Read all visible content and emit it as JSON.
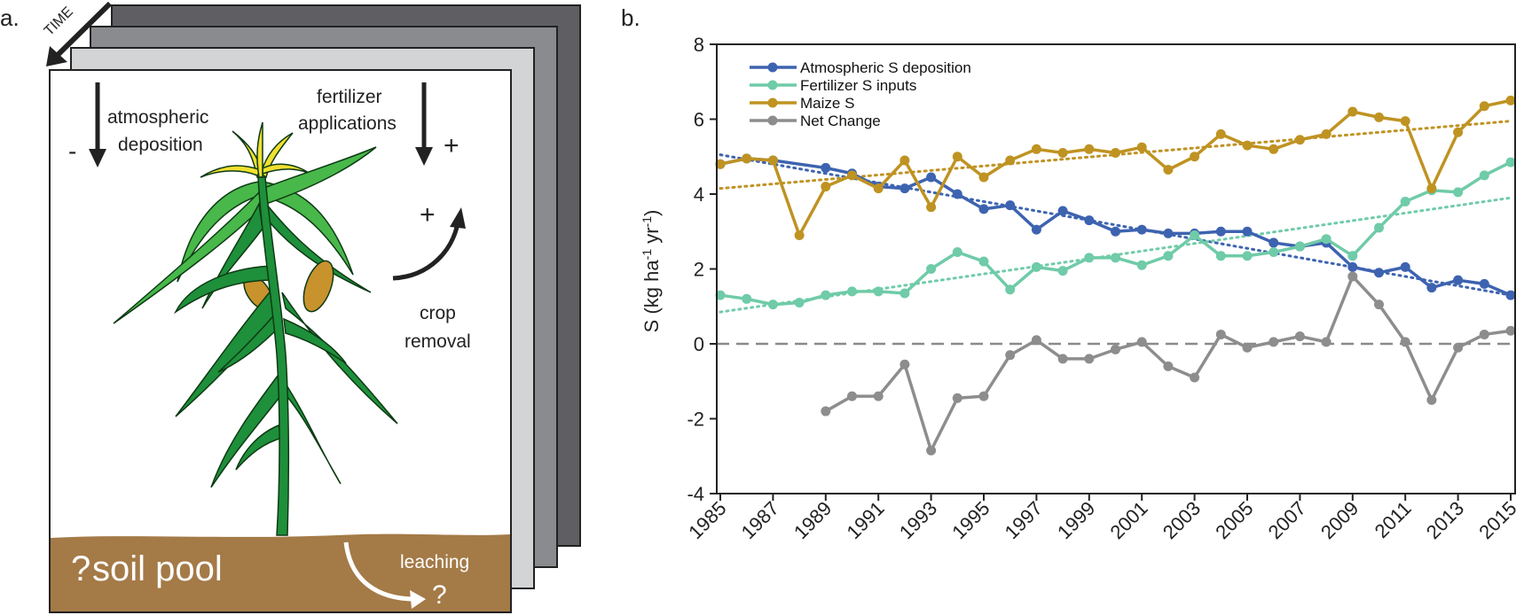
{
  "panel_a": {
    "panel_label": "a.",
    "time_label": "TIME",
    "atmospheric_deposition": [
      "atmospheric",
      "deposition"
    ],
    "minus_sign": "-",
    "fertilizer_applications": [
      "fertilizer",
      "applications"
    ],
    "plus_sign": "+",
    "crop_removal_sign": "+",
    "crop_removal": [
      "crop",
      "removal"
    ],
    "soil_pool_question": "?",
    "soil_pool": "soil pool",
    "leaching": "leaching",
    "leaching_question": "?",
    "colors": {
      "layer_back": "#5f5f63",
      "layer_mid": "#8a8b8f",
      "layer_front": "#d3d4d6",
      "soil": "#a47a47",
      "leaf_dark": "#1e8f3a",
      "leaf_light": "#48b84a",
      "tassel": "#f0e030",
      "cob": "#c8932d"
    }
  },
  "panel_b": {
    "panel_label": "b.",
    "chart_data": {
      "type": "line",
      "title": "",
      "xlabel": "",
      "ylabel": "S (kg ha-1 yr-1)",
      "ylabel_parts": {
        "a": "S (kg ha",
        "sup1": "-1",
        "b": " yr",
        "sup2": "-1",
        "c": ")"
      },
      "ylim": [
        -4,
        8
      ],
      "xlim": [
        1985,
        2015
      ],
      "yticks": [
        -4,
        -2,
        0,
        2,
        4,
        6,
        8
      ],
      "xticks": [
        "1985",
        "1987",
        "1989",
        "1991",
        "1993",
        "1995",
        "1997",
        "1999",
        "2001",
        "2003",
        "2005",
        "2007",
        "2009",
        "2011",
        "2013",
        "2015"
      ],
      "reference_line": {
        "y": 0,
        "style": "dashed"
      },
      "legend_position": "top-left",
      "series": [
        {
          "name": "Atmospheric S deposition",
          "color": "#3d63b0",
          "x": [
            1985,
            1986,
            1987,
            1989,
            1990,
            1991,
            1992,
            1993,
            1994,
            1995,
            1996,
            1997,
            1998,
            1999,
            2000,
            2001,
            2002,
            2003,
            2004,
            2005,
            2006,
            2007,
            2008,
            2009,
            2010,
            2011,
            2012,
            2013,
            2014,
            2015
          ],
          "y": [
            4.8,
            4.95,
            4.9,
            4.7,
            4.55,
            4.2,
            4.15,
            4.45,
            4.0,
            3.6,
            3.7,
            3.05,
            3.55,
            3.3,
            3.0,
            3.05,
            2.95,
            2.95,
            3.0,
            3.0,
            2.7,
            2.6,
            2.7,
            2.05,
            1.9,
            2.05,
            1.5,
            1.7,
            1.6,
            1.3
          ],
          "trend": [
            5.05,
            1.3
          ]
        },
        {
          "name": "Fertilizer S inputs",
          "color": "#6fcba8",
          "x": [
            1985,
            1986,
            1987,
            1988,
            1989,
            1990,
            1991,
            1992,
            1993,
            1994,
            1995,
            1996,
            1997,
            1998,
            1999,
            2000,
            2001,
            2002,
            2003,
            2004,
            2005,
            2006,
            2007,
            2008,
            2009,
            2010,
            2011,
            2012,
            2013,
            2014,
            2015
          ],
          "y": [
            1.3,
            1.2,
            1.05,
            1.1,
            1.3,
            1.4,
            1.4,
            1.35,
            2.0,
            2.45,
            2.2,
            1.45,
            2.05,
            1.95,
            2.3,
            2.3,
            2.1,
            2.35,
            2.9,
            2.35,
            2.35,
            2.45,
            2.6,
            2.8,
            2.35,
            3.1,
            3.8,
            4.1,
            4.05,
            4.5,
            4.85
          ],
          "trend": [
            0.85,
            3.9
          ]
        },
        {
          "name": "Maize S",
          "color": "#bf9322",
          "x": [
            1985,
            1986,
            1987,
            1988,
            1989,
            1990,
            1991,
            1992,
            1993,
            1994,
            1995,
            1996,
            1997,
            1998,
            1999,
            2000,
            2001,
            2002,
            2003,
            2004,
            2005,
            2006,
            2007,
            2008,
            2009,
            2010,
            2011,
            2012,
            2013,
            2014,
            2015
          ],
          "y": [
            4.8,
            4.95,
            4.9,
            2.9,
            4.2,
            4.5,
            4.15,
            4.9,
            3.65,
            5.0,
            4.45,
            4.9,
            5.2,
            5.1,
            5.2,
            5.1,
            5.25,
            4.65,
            5.0,
            5.6,
            5.3,
            5.2,
            5.45,
            5.6,
            6.2,
            6.05,
            5.95,
            4.15,
            5.65,
            6.35,
            6.5
          ],
          "trend": [
            4.15,
            5.95
          ]
        },
        {
          "name": "Net Change",
          "color": "#8d8d8d",
          "x": [
            1989,
            1990,
            1991,
            1992,
            1993,
            1994,
            1995,
            1996,
            1997,
            1998,
            1999,
            2000,
            2001,
            2002,
            2003,
            2004,
            2005,
            2006,
            2007,
            2008,
            2009,
            2010,
            2011,
            2012,
            2013,
            2014,
            2015
          ],
          "y": [
            -1.8,
            -1.4,
            -1.4,
            -0.55,
            -2.85,
            -1.45,
            -1.4,
            -0.3,
            0.1,
            -0.4,
            -0.4,
            -0.15,
            0.05,
            -0.6,
            -0.9,
            0.25,
            -0.1,
            0.05,
            0.2,
            0.05,
            1.8,
            1.05,
            0.05,
            -1.5,
            -0.1,
            0.25,
            0.35
          ]
        }
      ]
    }
  }
}
